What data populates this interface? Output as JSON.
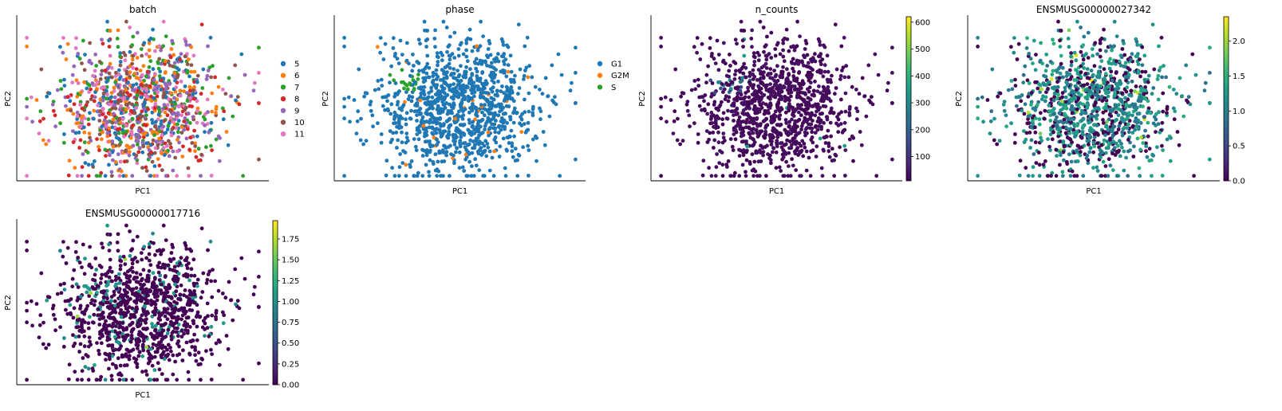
{
  "chart_data": [
    {
      "type": "scatter",
      "title": "batch",
      "xlabel": "PC1",
      "ylabel": "PC2",
      "color_mode": "categorical",
      "legend": {
        "placement": "right",
        "entries": [
          {
            "label": "5",
            "color": "#1f77b4"
          },
          {
            "label": "6",
            "color": "#ff7f0e"
          },
          {
            "label": "7",
            "color": "#2ca02c"
          },
          {
            "label": "8",
            "color": "#d62728"
          },
          {
            "label": "9",
            "color": "#9467bd"
          },
          {
            "label": "10",
            "color": "#8c564b"
          },
          {
            "label": "11",
            "color": "#e377c2"
          }
        ]
      }
    },
    {
      "type": "scatter",
      "title": "phase",
      "xlabel": "PC1",
      "ylabel": "PC2",
      "color_mode": "categorical",
      "legend": {
        "placement": "right",
        "entries": [
          {
            "label": "G1",
            "color": "#1f77b4"
          },
          {
            "label": "G2M",
            "color": "#ff7f0e"
          },
          {
            "label": "S",
            "color": "#2ca02c"
          }
        ]
      }
    },
    {
      "type": "scatter",
      "title": "n_counts",
      "xlabel": "PC1",
      "ylabel": "PC2",
      "color_mode": "continuous",
      "colormap": "viridis",
      "colorbar": {
        "min": 10,
        "max": 620,
        "ticks": [
          100,
          200,
          300,
          400,
          500,
          600
        ]
      }
    },
    {
      "type": "scatter",
      "title": "ENSMUSG00000027342",
      "xlabel": "PC1",
      "ylabel": "PC2",
      "color_mode": "continuous",
      "colormap": "viridis",
      "colorbar": {
        "min": 0,
        "max": 2.35,
        "ticks": [
          "0.0",
          "0.5",
          "1.0",
          "1.5",
          "2.0"
        ]
      }
    },
    {
      "type": "scatter",
      "title": "ENSMUSG00000017716",
      "xlabel": "PC1",
      "ylabel": "PC2",
      "color_mode": "continuous",
      "colormap": "viridis",
      "colorbar": {
        "min": 0,
        "max": 1.97,
        "ticks": [
          "0.00",
          "0.25",
          "0.50",
          "0.75",
          "1.00",
          "1.25",
          "1.50",
          "1.75"
        ]
      }
    }
  ]
}
